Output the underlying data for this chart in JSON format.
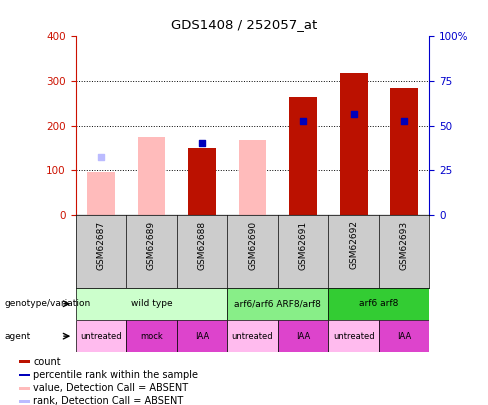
{
  "title": "GDS1408 / 252057_at",
  "samples": [
    "GSM62687",
    "GSM62689",
    "GSM62688",
    "GSM62690",
    "GSM62691",
    "GSM62692",
    "GSM62693"
  ],
  "count_values": [
    null,
    null,
    150,
    null,
    265,
    318,
    285
  ],
  "count_absent_values": [
    95,
    175,
    null,
    168,
    null,
    null,
    null
  ],
  "percentile_rank": [
    null,
    null,
    160,
    null,
    210,
    225,
    210
  ],
  "percentile_rank_absent": [
    130,
    null,
    null,
    null,
    null,
    null,
    null
  ],
  "ylim_left": [
    0,
    400
  ],
  "ylim_right": [
    0,
    100
  ],
  "yticks_left": [
    0,
    100,
    200,
    300,
    400
  ],
  "yticks_right": [
    0,
    25,
    50,
    75,
    100
  ],
  "yticklabels_right": [
    "0",
    "25",
    "50",
    "75",
    "100%"
  ],
  "genotype_groups": [
    {
      "label": "wild type",
      "start": 0,
      "end": 3,
      "color": "#ccffcc"
    },
    {
      "label": "arf6/arf6 ARF8/arf8",
      "start": 3,
      "end": 5,
      "color": "#88ee88"
    },
    {
      "label": "arf6 arf8",
      "start": 5,
      "end": 7,
      "color": "#33cc33"
    }
  ],
  "agent_groups": [
    {
      "label": "untreated",
      "start": 0,
      "end": 1,
      "color": "#ffbbee"
    },
    {
      "label": "mock",
      "start": 1,
      "end": 2,
      "color": "#dd44cc"
    },
    {
      "label": "IAA",
      "start": 2,
      "end": 3,
      "color": "#dd44cc"
    },
    {
      "label": "untreated",
      "start": 3,
      "end": 4,
      "color": "#ffbbee"
    },
    {
      "label": "IAA",
      "start": 4,
      "end": 5,
      "color": "#dd44cc"
    },
    {
      "label": "untreated",
      "start": 5,
      "end": 6,
      "color": "#ffbbee"
    },
    {
      "label": "IAA",
      "start": 6,
      "end": 7,
      "color": "#dd44cc"
    }
  ],
  "bar_width": 0.55,
  "color_count": "#bb1100",
  "color_count_absent": "#ffbbbb",
  "color_rank": "#0000bb",
  "color_rank_absent": "#bbbbff",
  "left_axis_color": "#cc1100",
  "right_axis_color": "#0000cc",
  "legend_items": [
    {
      "label": "count",
      "color": "#bb1100"
    },
    {
      "label": "percentile rank within the sample",
      "color": "#0000bb"
    },
    {
      "label": "value, Detection Call = ABSENT",
      "color": "#ffbbbb"
    },
    {
      "label": "rank, Detection Call = ABSENT",
      "color": "#bbbbff"
    }
  ],
  "xlabels_bg": "#cccccc",
  "sample_border": "#888888"
}
